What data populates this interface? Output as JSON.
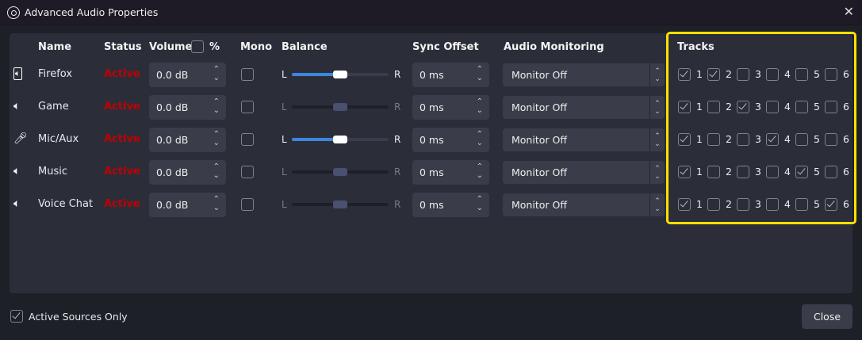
{
  "window": {
    "title": "Advanced Audio Properties",
    "close_glyph": "✕"
  },
  "headers": {
    "name": "Name",
    "status": "Status",
    "volume": "Volume",
    "percent": "%",
    "mono": "Mono",
    "balance": "Balance",
    "sync": "Sync Offset",
    "monitoring": "Audio Monitoring",
    "tracks": "Tracks"
  },
  "volume_percent_checked": false,
  "balance_labels": {
    "left": "L",
    "right": "R"
  },
  "track_numbers": [
    "1",
    "2",
    "3",
    "4",
    "5",
    "6"
  ],
  "highlight_color": "#ffe000",
  "status_color": "#c00000",
  "sources": [
    {
      "icon": "app-audio-icon",
      "name": "Firefox",
      "status": "Active",
      "volume": "0.0 dB",
      "mono": false,
      "balance": 0.5,
      "balance_enabled": true,
      "sync": "0 ms",
      "monitoring": "Monitor Off",
      "tracks": [
        true,
        true,
        false,
        false,
        false,
        false
      ]
    },
    {
      "icon": "speaker-icon",
      "name": "Game",
      "status": "Active",
      "volume": "0.0 dB",
      "mono": false,
      "balance": 0.5,
      "balance_enabled": false,
      "sync": "0 ms",
      "monitoring": "Monitor Off",
      "tracks": [
        true,
        false,
        true,
        false,
        false,
        false
      ]
    },
    {
      "icon": "microphone-icon",
      "name": "Mic/Aux",
      "status": "Active",
      "volume": "0.0 dB",
      "mono": false,
      "balance": 0.5,
      "balance_enabled": true,
      "sync": "0 ms",
      "monitoring": "Monitor Off",
      "tracks": [
        true,
        false,
        false,
        true,
        false,
        false
      ]
    },
    {
      "icon": "speaker-icon",
      "name": "Music",
      "status": "Active",
      "volume": "0.0 dB",
      "mono": false,
      "balance": 0.5,
      "balance_enabled": false,
      "sync": "0 ms",
      "monitoring": "Monitor Off",
      "tracks": [
        true,
        false,
        false,
        false,
        true,
        false
      ]
    },
    {
      "icon": "speaker-icon",
      "name": "Voice Chat",
      "status": "Active",
      "volume": "0.0 dB",
      "mono": false,
      "balance": 0.5,
      "balance_enabled": false,
      "sync": "0 ms",
      "monitoring": "Monitor Off",
      "tracks": [
        true,
        false,
        false,
        false,
        false,
        true
      ]
    }
  ],
  "footer": {
    "active_only_label": "Active Sources Only",
    "active_only_checked": true,
    "close_label": "Close"
  }
}
